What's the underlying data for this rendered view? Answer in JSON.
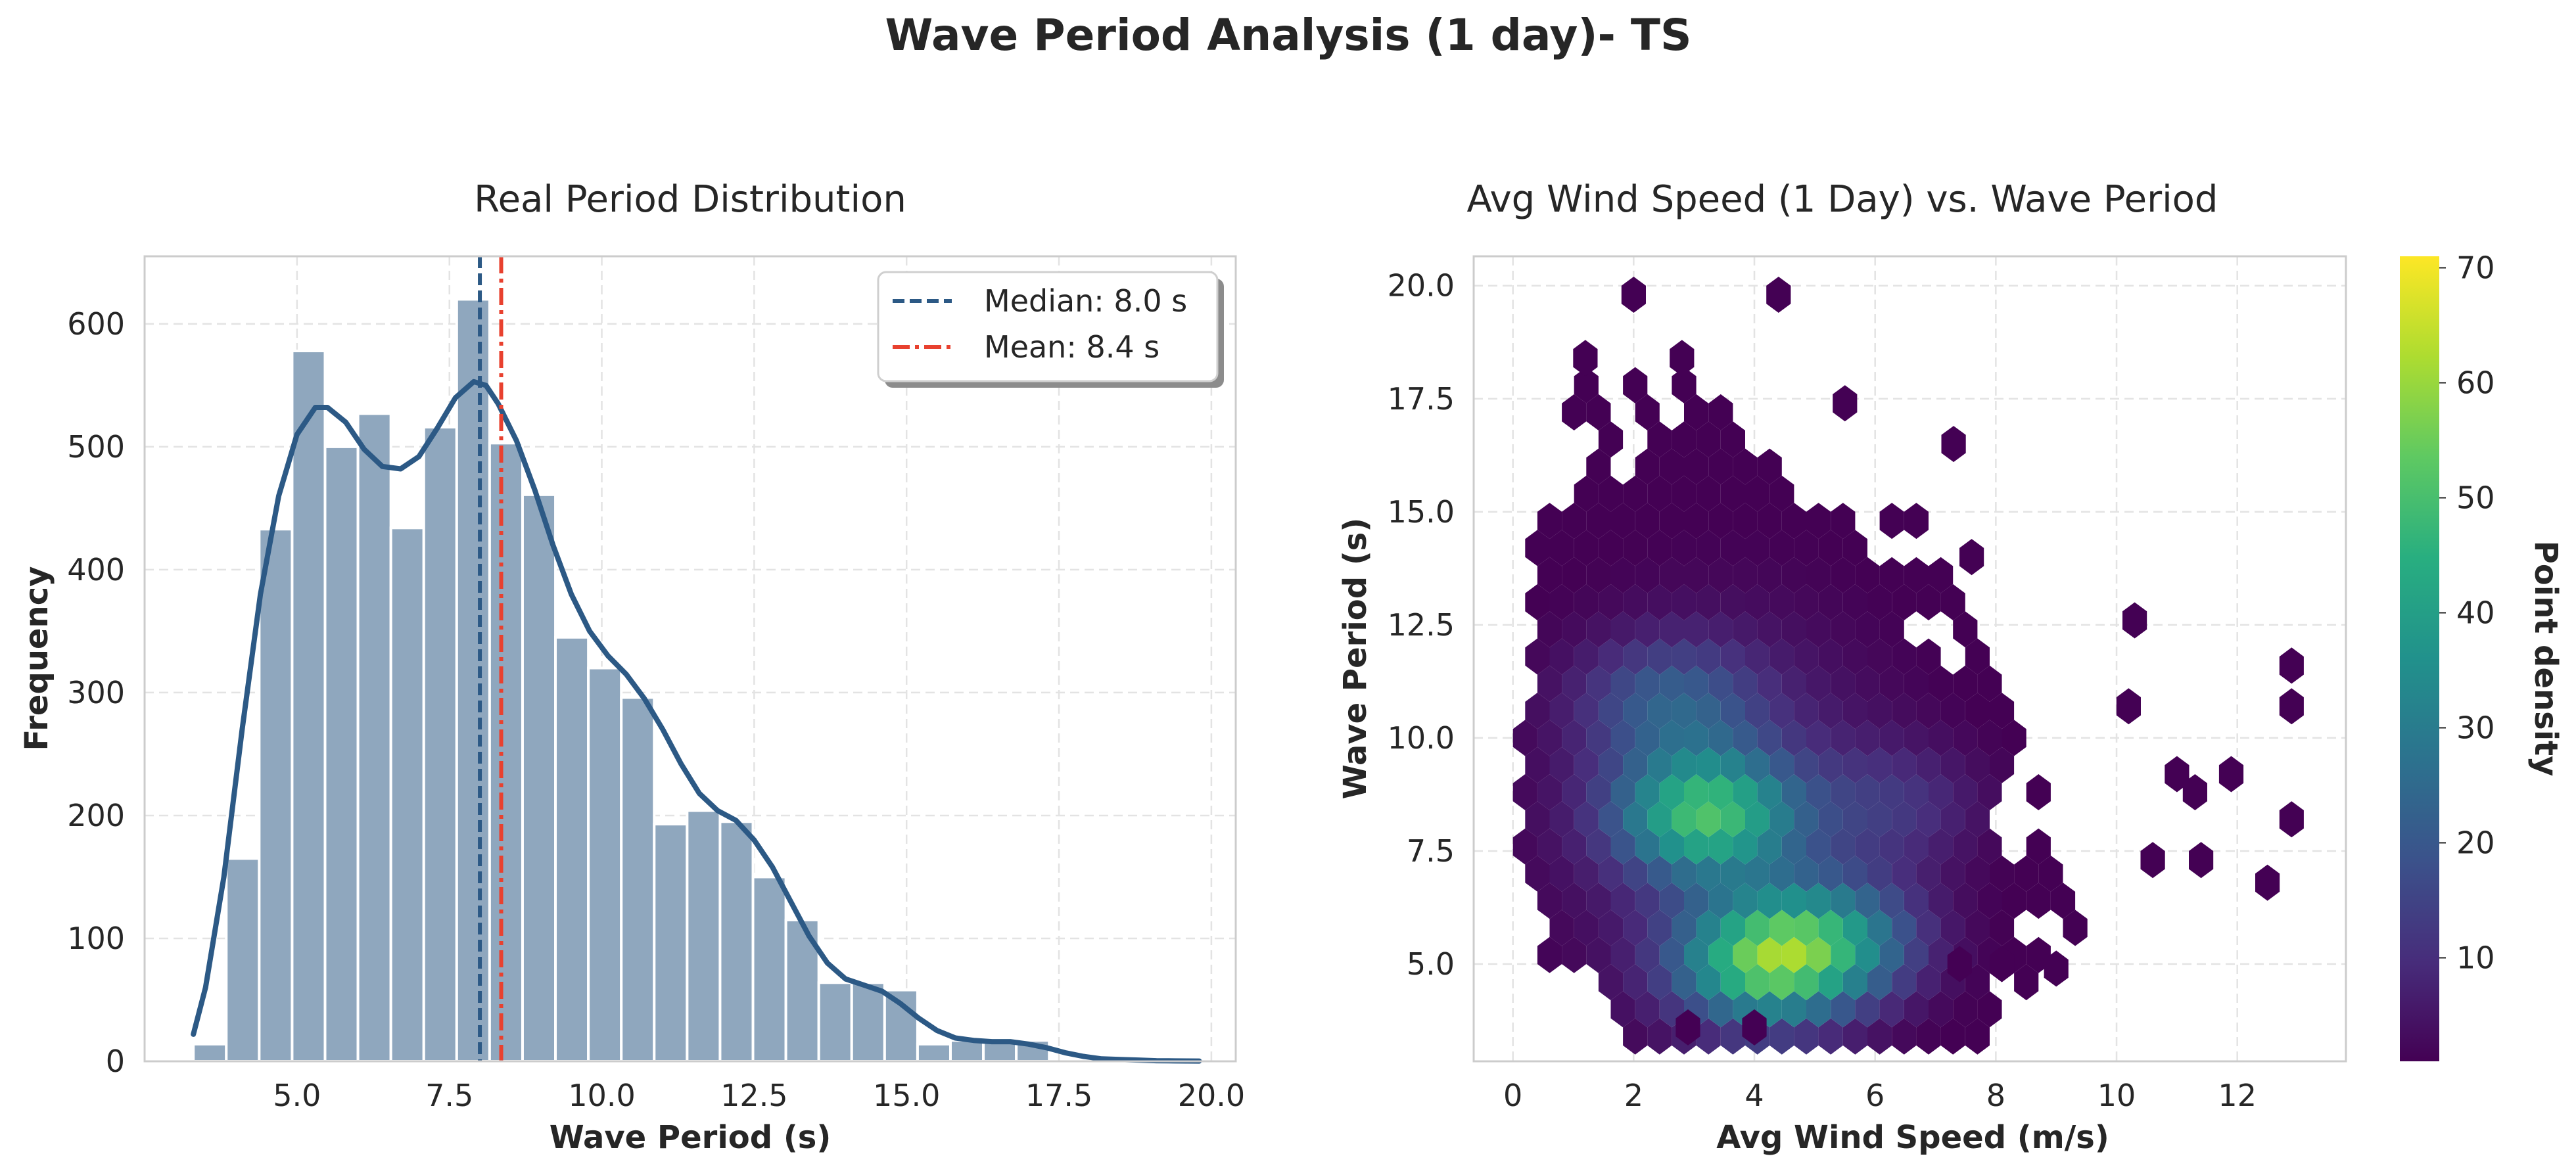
{
  "figure": {
    "title": "Wave Period Analysis (1 day)- TS"
  },
  "colors": {
    "hist_bar": "#8fa7be",
    "kde_line": "#2c5985",
    "median_line": "#2c5985",
    "mean_line": "#e8412f",
    "grid": "#e3e3e3",
    "spine": "#cccccc"
  },
  "chart_data": [
    {
      "type": "bar",
      "title": "Real Period Distribution",
      "xlabel": "Wave Period (s)",
      "ylabel": "Frequency",
      "xlim": [
        2.5,
        20.4
      ],
      "ylim": [
        0,
        655
      ],
      "xticks": [
        5.0,
        7.5,
        10.0,
        12.5,
        15.0,
        17.5,
        20.0
      ],
      "xtick_labels": [
        "5.0",
        "7.5",
        "10.0",
        "12.5",
        "15.0",
        "17.5",
        "20.0"
      ],
      "yticks": [
        0,
        100,
        200,
        300,
        400,
        500,
        600
      ],
      "ytick_labels": [
        "0",
        "100",
        "200",
        "300",
        "400",
        "500",
        "600"
      ],
      "grid": true,
      "bins": {
        "edges": [
          3.3,
          3.84,
          4.38,
          4.92,
          5.46,
          6.0,
          6.54,
          7.08,
          7.62,
          8.16,
          8.7,
          9.24,
          9.78,
          10.32,
          10.86,
          11.4,
          11.94,
          12.48,
          13.02,
          13.56,
          14.1,
          14.64,
          15.18,
          15.72,
          16.26,
          16.8,
          17.34
        ],
        "values": [
          14,
          165,
          433,
          578,
          500,
          527,
          434,
          516,
          620,
          503,
          461,
          345,
          320,
          296,
          193,
          204,
          195,
          150,
          115,
          64,
          64,
          58,
          14,
          17,
          18,
          17
        ]
      },
      "kde": {
        "x": [
          3.3,
          3.5,
          3.8,
          4.1,
          4.4,
          4.7,
          5.0,
          5.3,
          5.5,
          5.8,
          6.1,
          6.4,
          6.7,
          7.0,
          7.3,
          7.6,
          7.9,
          8.1,
          8.3,
          8.6,
          8.9,
          9.2,
          9.5,
          9.8,
          10.1,
          10.4,
          10.7,
          11.0,
          11.3,
          11.6,
          11.9,
          12.2,
          12.5,
          12.8,
          13.1,
          13.4,
          13.7,
          14.0,
          14.3,
          14.6,
          14.9,
          15.2,
          15.5,
          15.8,
          16.1,
          16.4,
          16.7,
          17.0,
          17.3,
          17.6,
          17.9,
          18.2,
          18.5,
          18.8,
          19.1,
          19.4,
          19.8
        ],
        "y": [
          22,
          60,
          150,
          270,
          380,
          460,
          510,
          532,
          532,
          520,
          498,
          484,
          482,
          492,
          515,
          540,
          553,
          550,
          535,
          505,
          465,
          420,
          380,
          350,
          330,
          315,
          295,
          270,
          242,
          218,
          204,
          196,
          180,
          158,
          130,
          102,
          80,
          67,
          62,
          57,
          47,
          35,
          25,
          19,
          17,
          16,
          16,
          14,
          11,
          7,
          4,
          2,
          1.5,
          1,
          0.5,
          0.3,
          0.2
        ]
      },
      "lines": [
        {
          "name": "Median: 8.0 s",
          "x": 8.0,
          "style": "dashed"
        },
        {
          "name": "Mean: 8.4 s",
          "x": 8.35,
          "style": "dashdot"
        }
      ],
      "legend": {
        "placement": "upper right",
        "entries": [
          "Median: 8.0 s",
          "Mean: 8.4 s"
        ]
      }
    },
    {
      "type": "heatmap",
      "title": "Avg Wind Speed (1 Day) vs. Wave Period",
      "xlabel": "Avg Wind Speed (m/s)",
      "ylabel": "Wave Period (s)",
      "xlim": [
        -0.65,
        13.8
      ],
      "ylim": [
        2.85,
        20.65
      ],
      "xticks": [
        0,
        2,
        4,
        6,
        8,
        10,
        12
      ],
      "xtick_labels": [
        "0",
        "2",
        "4",
        "6",
        "8",
        "10",
        "12"
      ],
      "yticks": [
        5.0,
        7.5,
        10.0,
        12.5,
        15.0,
        17.5,
        20.0
      ],
      "ytick_labels": [
        "5.0",
        "7.5",
        "10.0",
        "12.5",
        "15.0",
        "17.5",
        "20.0"
      ],
      "grid": true,
      "hexbin": {
        "x0": 0.0,
        "dx": 0.405,
        "y0": 3.4,
        "dy": 0.6,
        "nx": 33,
        "ny": 29,
        "peaks": [
          {
            "x": 3.2,
            "y": 8.3,
            "value": 70
          },
          {
            "x": 4.1,
            "y": 5.0,
            "value": 70
          },
          {
            "x": 5.3,
            "y": 5.5,
            "value": 48
          },
          {
            "x": 2.6,
            "y": 10.8,
            "value": 28
          },
          {
            "x": 6.3,
            "y": 8.5,
            "value": 16
          }
        ],
        "isolated_points": [
          [
            2.0,
            19.8
          ],
          [
            4.4,
            19.8
          ],
          [
            1.2,
            18.4
          ],
          [
            2.8,
            18.4
          ],
          [
            5.5,
            17.4
          ],
          [
            7.3,
            16.5
          ],
          [
            7.6,
            14.0
          ],
          [
            10.3,
            12.6
          ],
          [
            12.9,
            11.6
          ],
          [
            12.9,
            10.7
          ],
          [
            10.2,
            10.7
          ],
          [
            11.0,
            9.2
          ],
          [
            11.3,
            8.8
          ],
          [
            11.9,
            9.2
          ],
          [
            12.9,
            8.2
          ],
          [
            10.6,
            7.3
          ],
          [
            11.4,
            7.3
          ],
          [
            12.5,
            6.8
          ],
          [
            7.4,
            5.0
          ],
          [
            8.1,
            5.0
          ],
          [
            9.0,
            4.9
          ],
          [
            2.9,
            3.6
          ],
          [
            4.0,
            3.6
          ]
        ]
      },
      "colorbar": {
        "label": "Point density",
        "range": [
          1,
          71
        ],
        "ticks": [
          10,
          20,
          30,
          40,
          50,
          60,
          70
        ],
        "tick_labels": [
          "10",
          "20",
          "30",
          "40",
          "50",
          "60",
          "70"
        ],
        "colormap": "viridis"
      }
    }
  ]
}
